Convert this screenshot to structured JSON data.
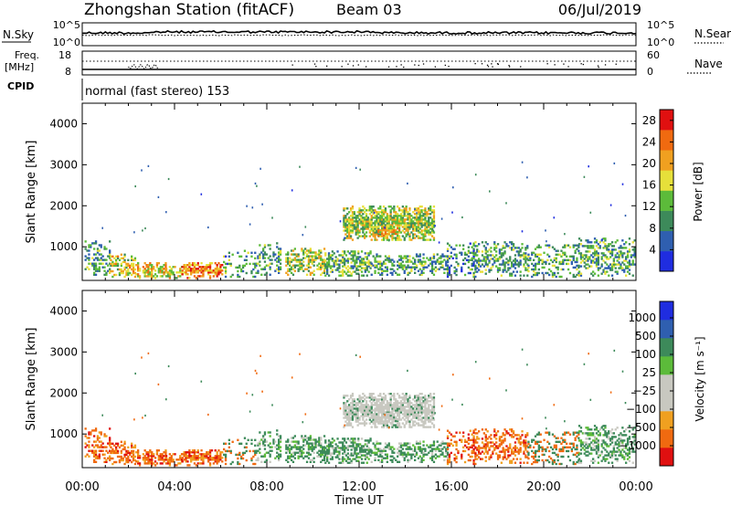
{
  "header": {
    "station": "Zhongshan Station (fitACF)",
    "beam": "Beam 03",
    "date": "06/Jul/2019"
  },
  "side_labels": {
    "nsky": "N.Sky",
    "freq_line1": "Freq.",
    "freq_line2": "[MHz]",
    "cpid": "CPID",
    "nsearch": "N.Search",
    "nave": "Nave"
  },
  "cpid_text": "normal (fast stereo) 153",
  "colors": {
    "power": [
      "#1f2de0",
      "#2f5fb0",
      "#3d8a5a",
      "#5cbb3a",
      "#e6e03a",
      "#f0a020",
      "#f06a10",
      "#e01010"
    ],
    "velocity": [
      "#e01010",
      "#f06a10",
      "#f0a020",
      "#c8c8c0",
      "#c8c8c0",
      "#5cbb3a",
      "#3d8a5a",
      "#2f5fb0",
      "#1f2de0"
    ]
  },
  "chart_data": [
    {
      "type": "line",
      "name": "noise",
      "ylabel": "N.Sky",
      "y_ticks_left": [
        "10^5",
        "10^0"
      ],
      "y2label": "N.Search",
      "y_ticks_right": [
        "10^5",
        "10^0"
      ]
    },
    {
      "type": "line",
      "name": "frequency",
      "ylabel": "Freq. [MHz]",
      "y_ticks_left": [
        "18",
        "8"
      ],
      "y2label": "Nave",
      "y_ticks_right": [
        "60",
        "0"
      ]
    },
    {
      "type": "heatmap",
      "name": "power",
      "ylabel": "Slant Range [km]",
      "ylim": [
        180,
        4500
      ],
      "yticks": [
        1000,
        2000,
        3000,
        4000
      ],
      "xlim": [
        0,
        24
      ],
      "colorbar_label": "Power [dB]",
      "colorbar_ticks": [
        "4",
        "8",
        "12",
        "16",
        "20",
        "24",
        "28"
      ],
      "clim": [
        0,
        30
      ]
    },
    {
      "type": "heatmap",
      "name": "velocity",
      "ylabel": "Slant Range [km]",
      "ylim": [
        180,
        4500
      ],
      "yticks": [
        1000,
        2000,
        3000,
        4000
      ],
      "xlim": [
        0,
        24
      ],
      "xlabel": "Time UT",
      "xticks": [
        "00:00",
        "04:00",
        "08:00",
        "12:00",
        "16:00",
        "20:00",
        "00:00"
      ],
      "colorbar_label": "Velocity [m s⁻¹]",
      "colorbar_ticks": [
        "1000",
        "500",
        "100",
        "25",
        "−25",
        "−100",
        "−500",
        "−1000"
      ],
      "clim": [
        -1000,
        1000
      ]
    }
  ]
}
